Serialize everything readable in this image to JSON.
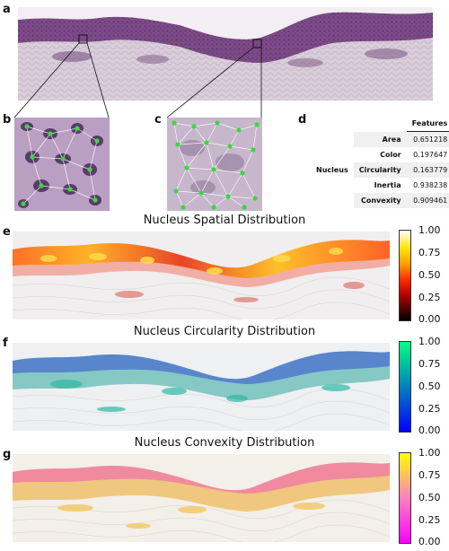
{
  "panels": {
    "a": "a",
    "b": "b",
    "c": "c",
    "d": "d",
    "e": "e",
    "f": "f",
    "g": "g"
  },
  "features_table": {
    "column_header": "Features",
    "group_label": "Nucleus",
    "rows": [
      {
        "name": "Area",
        "value": "0.651218"
      },
      {
        "name": "Color",
        "value": "0.197647"
      },
      {
        "name": "Circularity",
        "value": "0.163779"
      },
      {
        "name": "Inertia",
        "value": "0.938238"
      },
      {
        "name": "Convexity",
        "value": "0.909461"
      }
    ]
  },
  "heatmaps": [
    {
      "title": "Nucleus Spatial Distribution",
      "colormap": "hot",
      "ticks": [
        "1.00",
        "0.75",
        "0.50",
        "0.25",
        "0.00"
      ]
    },
    {
      "title": "Nucleus Circularity Distribution",
      "colormap": "winter",
      "ticks": [
        "1.00",
        "0.75",
        "0.50",
        "0.25",
        "0.00"
      ]
    },
    {
      "title": "Nucleus Convexity Distribution",
      "colormap": "spring",
      "ticks": [
        "1.00",
        "0.75",
        "0.50",
        "0.25",
        "0.00"
      ]
    }
  ],
  "colors": {
    "tissue_epidermis": "#7c4a86",
    "tissue_dermis": "#d7c9d6",
    "graph_node": "#39d93d",
    "graph_edge": "#ffffff"
  }
}
